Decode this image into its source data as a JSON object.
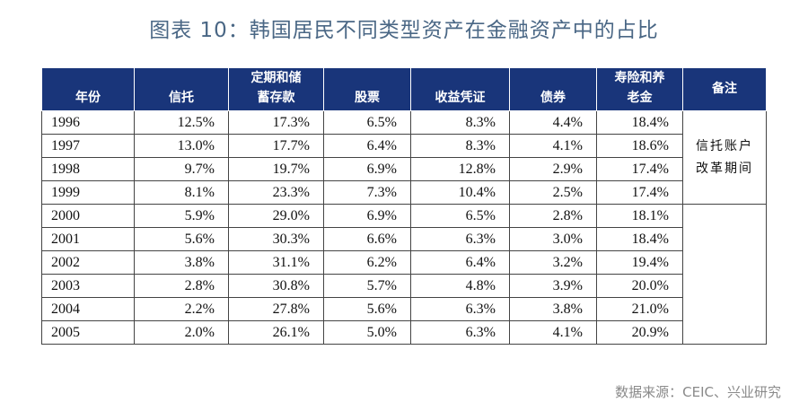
{
  "title": "图表 10：韩国居民不同类型资产在金融资产中的占比",
  "table": {
    "headers": [
      {
        "lines": [
          "年份"
        ]
      },
      {
        "lines": [
          "信托"
        ]
      },
      {
        "lines": [
          "定期和储",
          "蓄存款"
        ]
      },
      {
        "lines": [
          "股票"
        ]
      },
      {
        "lines": [
          "收益凭证"
        ]
      },
      {
        "lines": [
          "债券"
        ]
      },
      {
        "lines": [
          "寿险和养",
          "老金"
        ]
      },
      {
        "lines": [
          "备注"
        ]
      }
    ],
    "rows": [
      [
        "1996",
        "12.5%",
        "17.3%",
        "6.5%",
        "8.3%",
        "4.4%",
        "18.4%"
      ],
      [
        "1997",
        "13.0%",
        "17.7%",
        "6.4%",
        "8.3%",
        "4.1%",
        "18.6%"
      ],
      [
        "1998",
        "9.7%",
        "19.7%",
        "6.9%",
        "12.8%",
        "2.9%",
        "17.4%"
      ],
      [
        "1999",
        "8.1%",
        "23.3%",
        "7.3%",
        "10.4%",
        "2.5%",
        "17.4%"
      ],
      [
        "2000",
        "5.9%",
        "29.0%",
        "6.9%",
        "6.5%",
        "2.8%",
        "18.1%"
      ],
      [
        "2001",
        "5.6%",
        "30.3%",
        "6.6%",
        "6.3%",
        "3.0%",
        "18.4%"
      ],
      [
        "2002",
        "3.8%",
        "31.1%",
        "6.2%",
        "6.4%",
        "3.2%",
        "19.4%"
      ],
      [
        "2003",
        "2.8%",
        "30.8%",
        "5.7%",
        "4.8%",
        "3.9%",
        "20.0%"
      ],
      [
        "2004",
        "2.2%",
        "27.8%",
        "5.6%",
        "6.3%",
        "3.8%",
        "21.0%"
      ],
      [
        "2005",
        "2.0%",
        "26.1%",
        "5.0%",
        "6.3%",
        "4.1%",
        "20.9%"
      ]
    ],
    "note_lines": [
      "信托账户",
      "改革期间"
    ]
  },
  "source": "数据来源：CEIC、兴业研究",
  "colors": {
    "header_bg": "#19357a",
    "header_text": "#ffffff",
    "title": "#4a6785",
    "source": "#8a8a8a"
  }
}
